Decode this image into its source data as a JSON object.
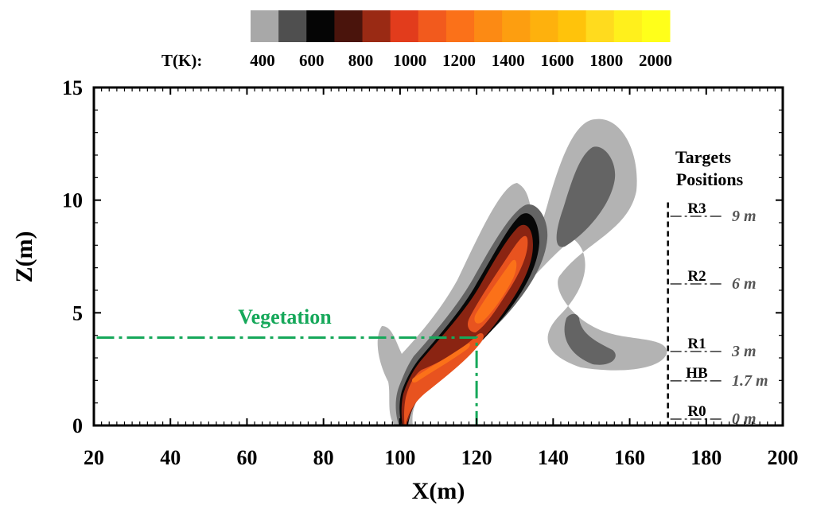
{
  "colorbar": {
    "label": "T(K):",
    "tick_labels": [
      "400",
      "600",
      "800",
      "1000",
      "1200",
      "1400",
      "1600",
      "1800",
      "2000"
    ],
    "tick_values": [
      400,
      600,
      800,
      1000,
      1200,
      1400,
      1600,
      1800,
      2000
    ],
    "colors": [
      "#a8a8a8",
      "#4f4f4f",
      "#050505",
      "#4a140c",
      "#9a2a14",
      "#e23c1c",
      "#f25a1d",
      "#fb7119",
      "#fc8a14",
      "#fd9e10",
      "#feb10d",
      "#ffc30b",
      "#ffdb1e",
      "#fff01c",
      "#ffff1a"
    ]
  },
  "chart_data": {
    "type": "heatmap",
    "title": "",
    "xlabel": "X(m)",
    "ylabel": "Z(m)",
    "xlim": [
      20,
      200
    ],
    "ylim": [
      0,
      15
    ],
    "x_ticks": [
      20,
      40,
      60,
      80,
      100,
      120,
      140,
      160,
      180,
      200
    ],
    "y_ticks": [
      0,
      5,
      10,
      15
    ],
    "field": "temperature (K)",
    "color_range": [
      400,
      2000
    ],
    "vegetation": {
      "label": "Vegetation",
      "x_range": [
        20,
        120
      ],
      "z_top": 3.9,
      "color": "#16a85a"
    },
    "plume": {
      "base_x": 100.5,
      "base_z": 0,
      "tip_x": 132,
      "tip_z": 9,
      "peak_level_K": "1000-1200"
    },
    "targets": {
      "title_line1": "Targets",
      "title_line2": "Positions",
      "x": 170,
      "items": [
        {
          "name": "R3",
          "height_text": "9 m",
          "z": 9
        },
        {
          "name": "R2",
          "height_text": "6 m",
          "z": 6
        },
        {
          "name": "R1",
          "height_text": "3 m",
          "z": 3
        },
        {
          "name": "HB",
          "height_text": "1.7 m",
          "z": 1.7
        },
        {
          "name": "R0",
          "height_text": "0 m",
          "z": 0
        }
      ]
    }
  }
}
